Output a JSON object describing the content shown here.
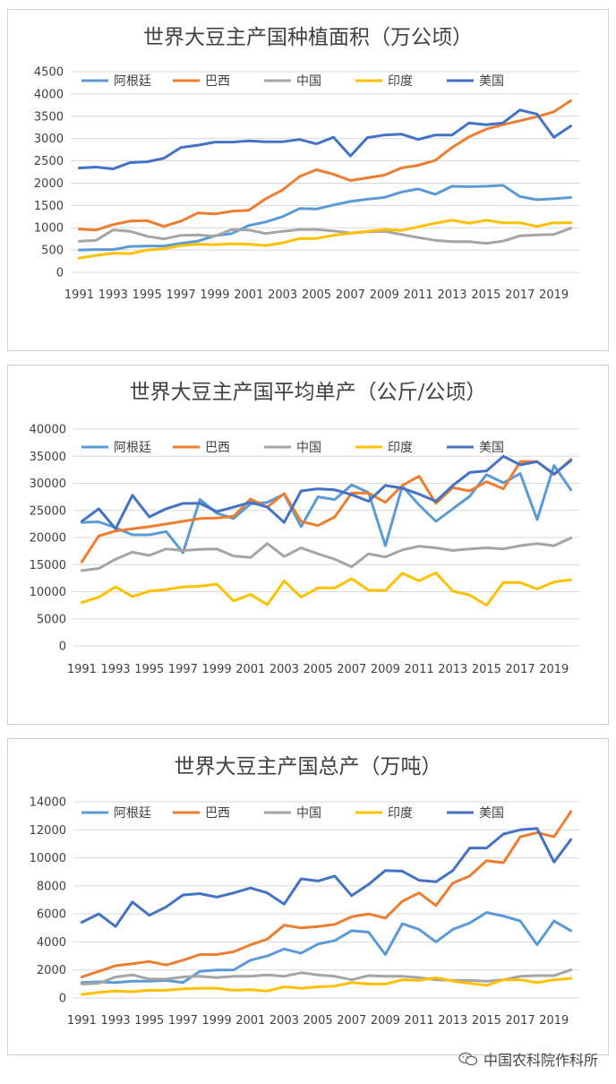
{
  "colors": {
    "阿根廷": "#5b9bd5",
    "巴西": "#ed7d31",
    "中国": "#a5a5a5",
    "印度": "#ffc000",
    "美国": "#4472c4"
  },
  "watermark": {
    "text": "中国农科院作科所",
    "icon": "wechat-icon"
  },
  "chart_data": [
    {
      "type": "line",
      "title": "世界大豆主产国种植面积（万公顷）",
      "xlabel": "",
      "ylabel": "",
      "ylim": [
        0,
        4500
      ],
      "yticks": [
        0,
        500,
        1000,
        1500,
        2000,
        2500,
        3000,
        3500,
        4000,
        4500
      ],
      "x": [
        1991,
        1992,
        1993,
        1994,
        1995,
        1996,
        1997,
        1998,
        1999,
        2000,
        2001,
        2002,
        2003,
        2004,
        2005,
        2006,
        2007,
        2008,
        2009,
        2010,
        2011,
        2012,
        2013,
        2014,
        2015,
        2016,
        2017,
        2018,
        2019,
        2020
      ],
      "xticks": [
        1991,
        1993,
        1995,
        1997,
        1999,
        2001,
        2003,
        2005,
        2007,
        2009,
        2011,
        2013,
        2015,
        2017,
        2019
      ],
      "legend_position": "top",
      "grid": true,
      "series": [
        {
          "name": "阿根廷",
          "values": [
            500,
            510,
            510,
            580,
            590,
            590,
            650,
            700,
            820,
            870,
            1050,
            1130,
            1250,
            1430,
            1420,
            1510,
            1590,
            1640,
            1680,
            1800,
            1870,
            1750,
            1930,
            1920,
            1930,
            1950,
            1700,
            1630,
            1650,
            1680
          ]
        },
        {
          "name": "巴西",
          "values": [
            970,
            950,
            1070,
            1150,
            1160,
            1030,
            1150,
            1330,
            1310,
            1370,
            1390,
            1650,
            1850,
            2150,
            2300,
            2200,
            2060,
            2120,
            2180,
            2340,
            2400,
            2510,
            2800,
            3040,
            3210,
            3310,
            3400,
            3490,
            3600,
            3850
          ]
        },
        {
          "name": "中国",
          "values": [
            700,
            720,
            950,
            920,
            810,
            750,
            830,
            840,
            810,
            960,
            950,
            870,
            920,
            960,
            960,
            930,
            880,
            910,
            920,
            850,
            780,
            720,
            690,
            690,
            650,
            700,
            820,
            840,
            850,
            990
          ]
        },
        {
          "name": "印度",
          "values": [
            320,
            380,
            430,
            420,
            500,
            530,
            600,
            630,
            620,
            640,
            630,
            600,
            660,
            760,
            760,
            830,
            880,
            920,
            960,
            940,
            1020,
            1100,
            1170,
            1100,
            1170,
            1110,
            1110,
            1030,
            1110,
            1110
          ]
        },
        {
          "name": "美国",
          "values": [
            2340,
            2360,
            2320,
            2460,
            2480,
            2560,
            2800,
            2850,
            2920,
            2920,
            2950,
            2930,
            2930,
            2980,
            2880,
            3030,
            2610,
            3020,
            3080,
            3100,
            2980,
            3080,
            3080,
            3350,
            3310,
            3350,
            3640,
            3550,
            3030,
            3280
          ]
        }
      ]
    },
    {
      "type": "line",
      "title": "世界大豆主产国平均单产（公斤/公顷）",
      "xlabel": "",
      "ylabel": "",
      "ylim": [
        0,
        40000
      ],
      "yticks": [
        0,
        5000,
        10000,
        15000,
        20000,
        25000,
        30000,
        35000,
        40000
      ],
      "x": [
        1991,
        1992,
        1993,
        1994,
        1995,
        1996,
        1997,
        1998,
        1999,
        2000,
        2001,
        2002,
        2003,
        2004,
        2005,
        2006,
        2007,
        2008,
        2009,
        2010,
        2011,
        2012,
        2013,
        2014,
        2015,
        2016,
        2017,
        2018,
        2019,
        2020
      ],
      "xticks": [
        1991,
        1993,
        1995,
        1997,
        1999,
        2001,
        2003,
        2005,
        2007,
        2009,
        2011,
        2013,
        2015,
        2017,
        2019
      ],
      "legend_position": "top",
      "grid": true,
      "series": [
        {
          "name": "阿根廷",
          "values": [
            22800,
            22900,
            21800,
            20500,
            20500,
            21100,
            17200,
            27000,
            24500,
            23500,
            26200,
            26500,
            28000,
            22000,
            27500,
            27000,
            29700,
            28300,
            18500,
            29500,
            26000,
            23000,
            25300,
            27600,
            31600,
            30100,
            31800,
            23300,
            33300,
            28800
          ]
        },
        {
          "name": "巴西",
          "values": [
            15500,
            20300,
            21200,
            21600,
            22000,
            22500,
            23000,
            23500,
            23600,
            23900,
            27100,
            25600,
            28100,
            23000,
            22200,
            23800,
            28200,
            28200,
            26500,
            29600,
            31300,
            26300,
            29200,
            28600,
            30300,
            29000,
            34000,
            34000,
            31600,
            34400
          ]
        },
        {
          "name": "中国",
          "values": [
            13900,
            14300,
            16000,
            17300,
            16700,
            17900,
            17600,
            17800,
            17900,
            16600,
            16300,
            18900,
            16500,
            18100,
            17000,
            16000,
            14600,
            17000,
            16400,
            17700,
            18400,
            18100,
            17600,
            17900,
            18100,
            17900,
            18500,
            18900,
            18500,
            19900
          ]
        },
        {
          "name": "印度",
          "values": [
            8000,
            9000,
            10900,
            9100,
            10100,
            10400,
            10900,
            11000,
            11400,
            8300,
            9500,
            7600,
            12000,
            9000,
            10700,
            10700,
            12400,
            10300,
            10200,
            13400,
            12000,
            13500,
            10100,
            9400,
            7500,
            11700,
            11700,
            10500,
            11800,
            12200
          ]
        },
        {
          "name": "美国",
          "values": [
            23000,
            25300,
            21600,
            27800,
            23800,
            25300,
            26300,
            26300,
            24800,
            25600,
            26500,
            25600,
            22800,
            28600,
            29000,
            28800,
            27900,
            26700,
            29600,
            29100,
            28000,
            26700,
            29600,
            32000,
            32300,
            35000,
            33400,
            34000,
            31700,
            34200
          ]
        }
      ]
    },
    {
      "type": "line",
      "title": "世界大豆主产国总产（万吨）",
      "xlabel": "",
      "ylabel": "",
      "ylim": [
        0,
        14000
      ],
      "yticks": [
        0,
        2000,
        4000,
        6000,
        8000,
        10000,
        12000,
        14000
      ],
      "x": [
        1991,
        1992,
        1993,
        1994,
        1995,
        1996,
        1997,
        1998,
        1999,
        2000,
        2001,
        2002,
        2003,
        2004,
        2005,
        2006,
        2007,
        2008,
        2009,
        2010,
        2011,
        2012,
        2013,
        2014,
        2015,
        2016,
        2017,
        2018,
        2019,
        2020
      ],
      "xticks": [
        1991,
        1993,
        1995,
        1997,
        1999,
        2001,
        2003,
        2005,
        2007,
        2009,
        2011,
        2013,
        2015,
        2017,
        2019
      ],
      "legend_position": "top",
      "grid": true,
      "series": [
        {
          "name": "阿根廷",
          "values": [
            1100,
            1150,
            1100,
            1200,
            1200,
            1250,
            1100,
            1900,
            2000,
            2000,
            2700,
            3000,
            3500,
            3200,
            3850,
            4100,
            4800,
            4700,
            3100,
            5300,
            4900,
            4000,
            4900,
            5350,
            6100,
            5850,
            5500,
            3800,
            5500,
            4800
          ]
        },
        {
          "name": "巴西",
          "values": [
            1500,
            1900,
            2300,
            2450,
            2600,
            2350,
            2700,
            3100,
            3100,
            3300,
            3800,
            4200,
            5200,
            5000,
            5100,
            5250,
            5800,
            6000,
            5700,
            6900,
            7500,
            6600,
            8200,
            8700,
            9800,
            9650,
            11500,
            11800,
            11500,
            13300
          ]
        },
        {
          "name": "中国",
          "values": [
            1000,
            1050,
            1500,
            1650,
            1350,
            1350,
            1500,
            1550,
            1450,
            1550,
            1550,
            1650,
            1550,
            1800,
            1650,
            1550,
            1300,
            1600,
            1550,
            1550,
            1450,
            1300,
            1250,
            1250,
            1200,
            1300,
            1550,
            1600,
            1600,
            2000
          ]
        },
        {
          "name": "印度",
          "values": [
            250,
            400,
            500,
            450,
            550,
            550,
            650,
            700,
            700,
            550,
            600,
            500,
            800,
            700,
            800,
            850,
            1100,
            1000,
            1000,
            1300,
            1250,
            1450,
            1200,
            1050,
            900,
            1300,
            1300,
            1100,
            1300,
            1400
          ]
        },
        {
          "name": "美国",
          "values": [
            5400,
            6000,
            5100,
            6850,
            5900,
            6500,
            7350,
            7450,
            7200,
            7500,
            7850,
            7500,
            6700,
            8500,
            8350,
            8700,
            7300,
            8100,
            9100,
            9050,
            8400,
            8300,
            9100,
            10700,
            10700,
            11700,
            12000,
            12100,
            9700,
            11300
          ]
        }
      ]
    }
  ]
}
